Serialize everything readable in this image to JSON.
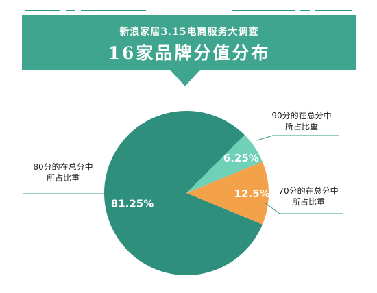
{
  "header": {
    "subtitle": "新浪家居3.15电商服务大调查",
    "title": "16家品牌分值分布"
  },
  "colors": {
    "banner": "#3fa58e",
    "slice_80": "#2d8f7c",
    "slice_90": "#6fd2b8",
    "slice_70": "#f4a24a",
    "leader": "#2f9a84"
  },
  "chart_data": {
    "type": "pie",
    "title": "16家品牌分值分布",
    "slices": [
      {
        "label": "80分的在总分中所占比重",
        "label_lines": [
          "80分的在总分中",
          "所占比重"
        ],
        "value": 81.25,
        "display": "81.25%",
        "color": "#2d8f7c"
      },
      {
        "label": "90分的在总分中所占比重",
        "label_lines": [
          "90分的在总分中",
          "所占比重"
        ],
        "value": 6.25,
        "display": "6.25%",
        "color": "#6fd2b8"
      },
      {
        "label": "70分的在总分中所占比重",
        "label_lines": [
          "70分的在总分中",
          "所占比重"
        ],
        "value": 12.5,
        "display": "12.5%",
        "color": "#f4a24a"
      }
    ]
  }
}
